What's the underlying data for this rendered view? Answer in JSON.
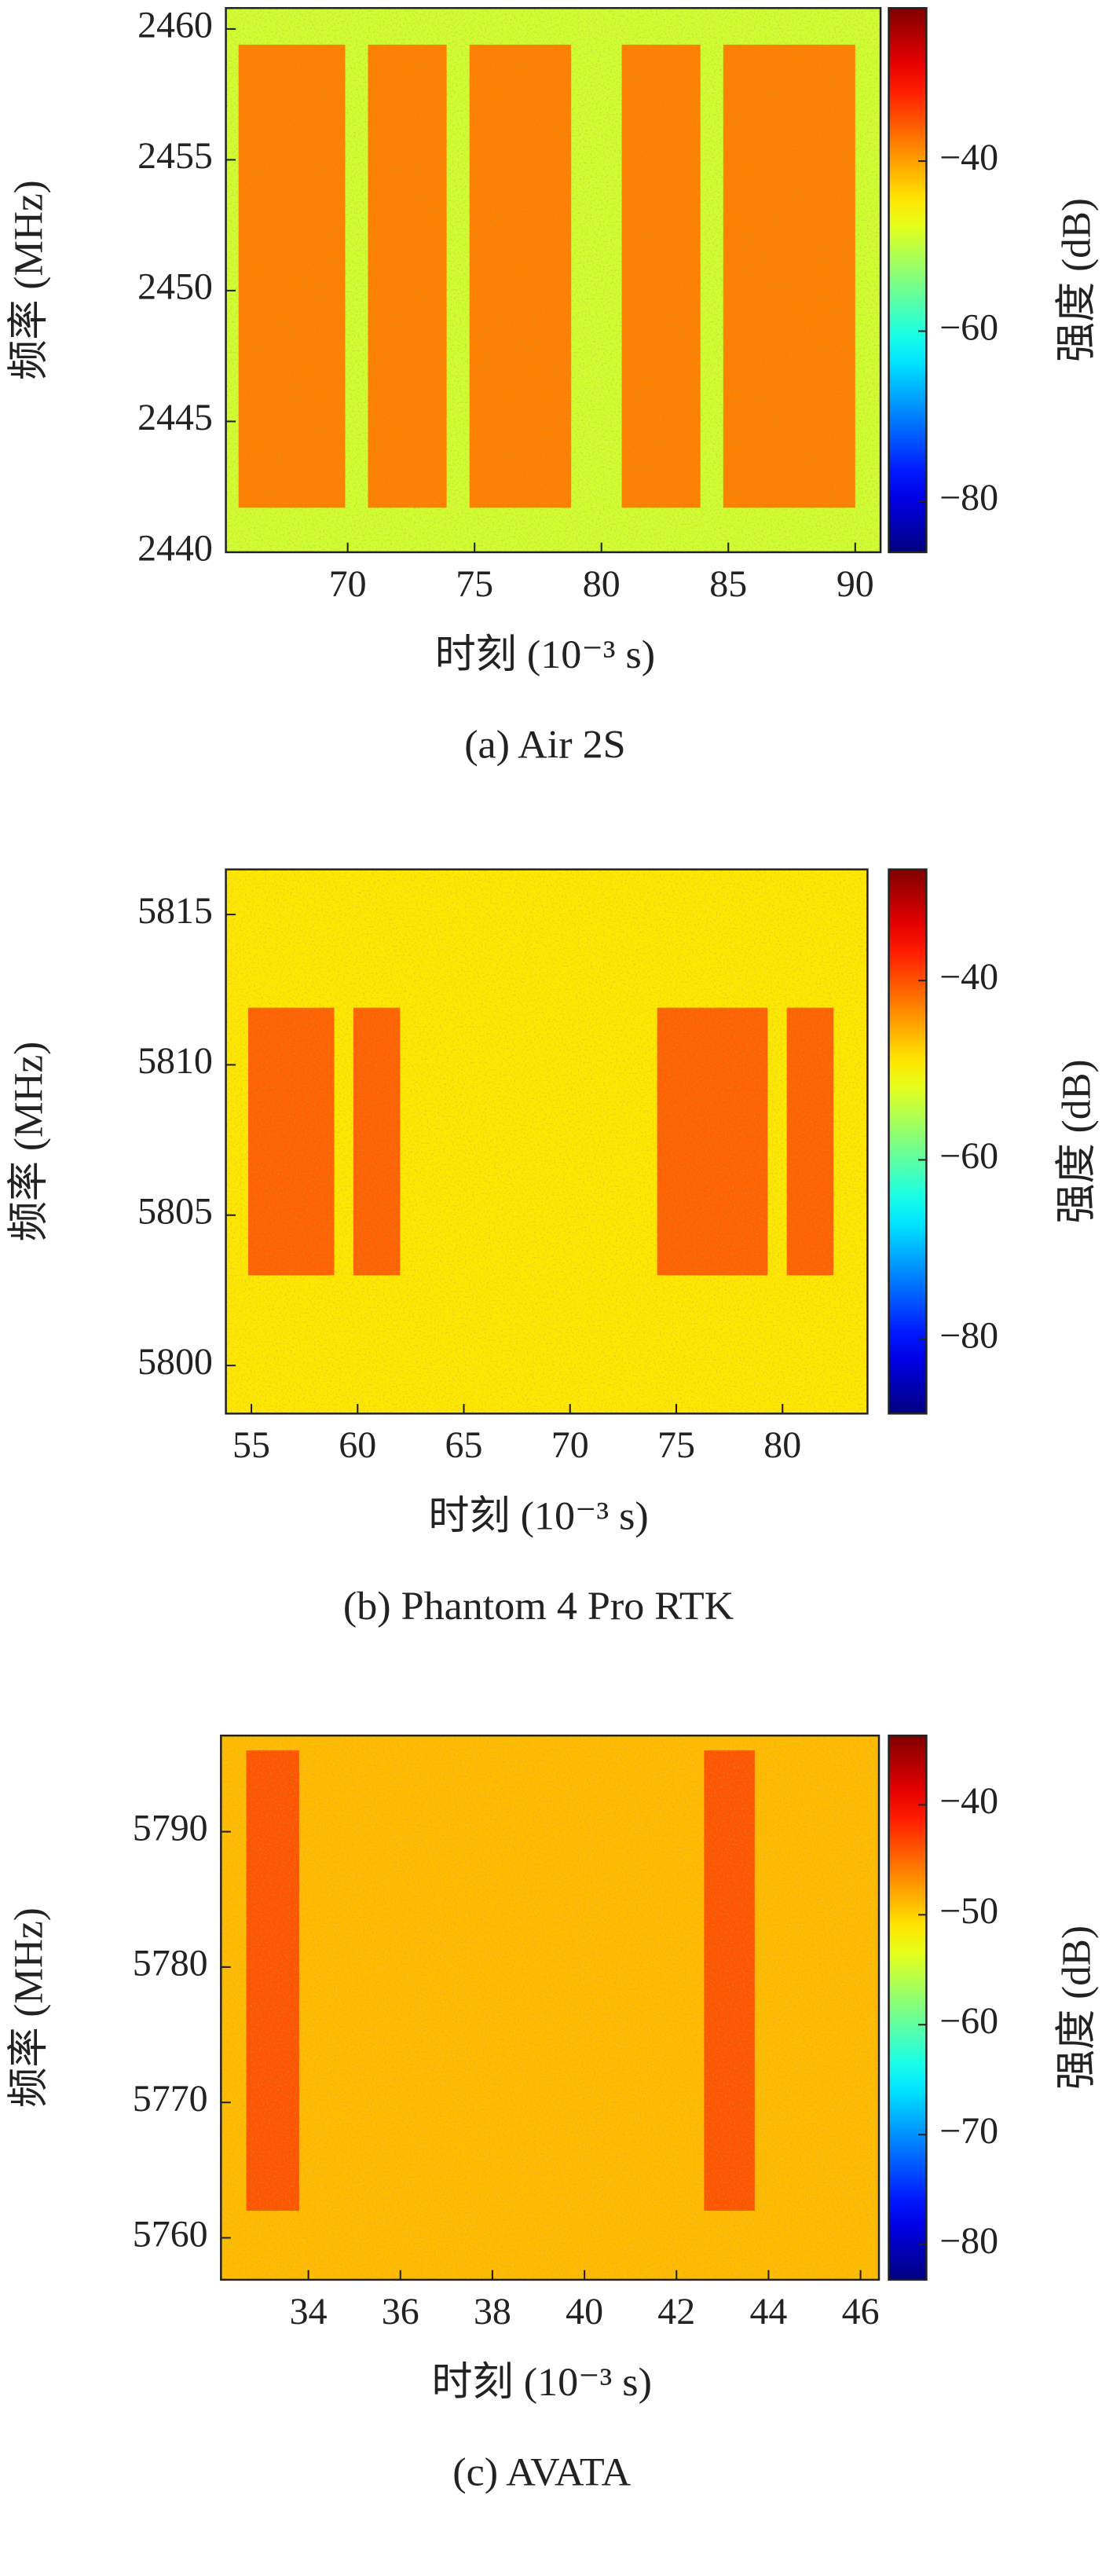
{
  "chart_data": [
    {
      "type": "spectrogram",
      "title": "(a) Air 2S",
      "xlabel": "时刻 (10⁻³ s)",
      "ylabel": "频率 (MHz)",
      "colorbar_label": "强度 (dB)",
      "colormap": "jet",
      "xlim": [
        65.2,
        91.0
      ],
      "ylim": [
        2440,
        2460.8
      ],
      "xticks": [
        70,
        75,
        80,
        85,
        90
      ],
      "yticks": [
        2440,
        2445,
        2450,
        2455,
        2460
      ],
      "clim": [
        -86,
        -22
      ],
      "cticks": [
        {
          "value": -40,
          "label": "−40"
        },
        {
          "value": -60,
          "label": "−60"
        },
        {
          "value": -80,
          "label": "−80"
        }
      ],
      "background": -49,
      "bursts": [
        {
          "x": [
            65.7,
            69.9
          ],
          "y": [
            2441.7,
            2459.4
          ],
          "value": -38
        },
        {
          "x": [
            70.8,
            73.9
          ],
          "y": [
            2441.7,
            2459.4
          ],
          "value": -38
        },
        {
          "x": [
            74.8,
            78.8
          ],
          "y": [
            2441.7,
            2459.4
          ],
          "value": -38
        },
        {
          "x": [
            80.8,
            83.9
          ],
          "y": [
            2441.7,
            2459.4
          ],
          "value": -38
        },
        {
          "x": [
            84.8,
            90.0
          ],
          "y": [
            2441.7,
            2459.4
          ],
          "value": -38
        }
      ]
    },
    {
      "type": "spectrogram",
      "title": "(b) Phantom 4 Pro RTK",
      "xlabel": "时刻 (10⁻³ s)",
      "ylabel": "频率 (MHz)",
      "colorbar_label": "强度 (dB)",
      "colormap": "jet",
      "xlim": [
        53.8,
        84.0
      ],
      "ylim": [
        5798.4,
        5816.5
      ],
      "xticks": [
        55,
        60,
        65,
        70,
        75,
        80
      ],
      "yticks": [
        5800,
        5805,
        5810,
        5815
      ],
      "clim": [
        -88.3,
        -27.6
      ],
      "cticks": [
        {
          "value": -40,
          "label": "−40"
        },
        {
          "value": -60,
          "label": "−60"
        },
        {
          "value": -80,
          "label": "−80"
        }
      ],
      "background": -49,
      "bursts": [
        {
          "x": [
            54.85,
            58.9
          ],
          "y": [
            5803.0,
            5811.9
          ],
          "value": -41
        },
        {
          "x": [
            59.8,
            62.0
          ],
          "y": [
            5803.0,
            5811.9
          ],
          "value": -41
        },
        {
          "x": [
            74.1,
            79.3
          ],
          "y": [
            5803.0,
            5811.9
          ],
          "value": -41
        },
        {
          "x": [
            80.2,
            82.4
          ],
          "y": [
            5803.0,
            5811.9
          ],
          "value": -41
        }
      ]
    },
    {
      "type": "spectrogram",
      "title": "(c) AVATA",
      "xlabel": "时刻 (10⁻³ s)",
      "ylabel": "频率 (MHz)",
      "colorbar_label": "强度 (dB)",
      "colormap": "jet",
      "xlim": [
        32.1,
        46.4
      ],
      "ylim": [
        5756.9,
        5797.1
      ],
      "xticks": [
        34,
        36,
        38,
        40,
        42,
        44,
        46
      ],
      "yticks": [
        5760,
        5770,
        5780,
        5790
      ],
      "clim": [
        -83.2,
        -33.7
      ],
      "cticks": [
        {
          "value": -40,
          "label": "−40"
        },
        {
          "value": -50,
          "label": "−50"
        },
        {
          "value": -60,
          "label": "−60"
        },
        {
          "value": -70,
          "label": "−70"
        },
        {
          "value": -80,
          "label": "−80"
        }
      ],
      "background": -49,
      "bursts": [
        {
          "x": [
            32.65,
            33.8
          ],
          "y": [
            5762,
            5796
          ],
          "value": -44
        },
        {
          "x": [
            42.6,
            43.7
          ],
          "y": [
            5762,
            5796
          ],
          "value": -44
        }
      ]
    }
  ]
}
